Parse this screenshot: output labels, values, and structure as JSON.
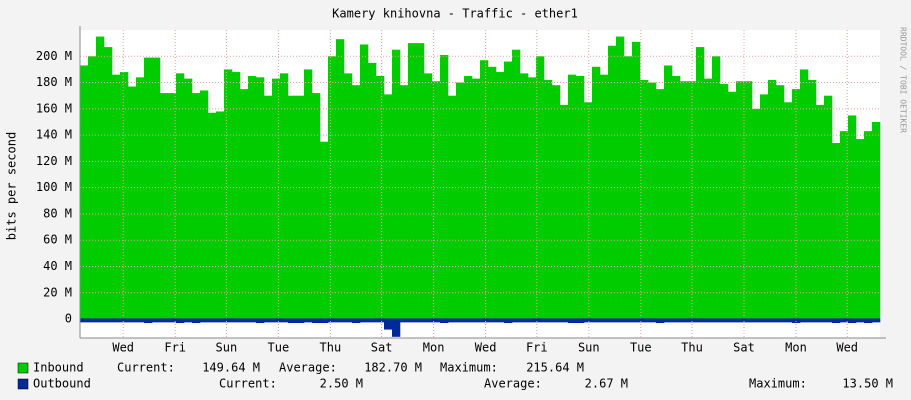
{
  "chart_data": {
    "type": "area",
    "title": "Kamery knihovna - Traffic - ether1",
    "y_label": "bits per second",
    "watermark": "RRDTOOL / TOBI OETIKER",
    "ylim": [
      -14.4,
      220
    ],
    "yticks": [
      0,
      {
        "value": 20,
        "label": "20 M"
      },
      {
        "value": 40,
        "label": "40 M"
      },
      {
        "value": 60,
        "label": "60 M"
      },
      {
        "value": 80,
        "label": "80 M"
      },
      {
        "value": 100,
        "label": "100 M"
      },
      {
        "value": 120,
        "label": "120 M"
      },
      {
        "value": 140,
        "label": "140 M"
      },
      {
        "value": 160,
        "label": "160 M"
      },
      {
        "value": 180,
        "label": "180 M"
      },
      {
        "value": 200,
        "label": "200 M"
      }
    ],
    "xlim": [
      0,
      100
    ],
    "xticks": [
      {
        "value": 5.4,
        "label": "Wed"
      },
      {
        "value": 11.9,
        "label": "Fri"
      },
      {
        "value": 18.3,
        "label": "Sun"
      },
      {
        "value": 24.8,
        "label": "Tue"
      },
      {
        "value": 31.3,
        "label": "Thu"
      },
      {
        "value": 37.7,
        "label": "Sat"
      },
      {
        "value": 44.2,
        "label": "Mon"
      },
      {
        "value": 50.7,
        "label": "Wed"
      },
      {
        "value": 57.1,
        "label": "Fri"
      },
      {
        "value": 63.6,
        "label": "Sun"
      },
      {
        "value": 70.1,
        "label": "Tue"
      },
      {
        "value": 76.5,
        "label": "Thu"
      },
      {
        "value": 83.0,
        "label": "Sat"
      },
      {
        "value": 89.5,
        "label": "Mon"
      },
      {
        "value": 95.9,
        "label": "Wed"
      }
    ],
    "grid": true,
    "series": [
      {
        "name": "Inbound",
        "color": "#00cc00",
        "values": [
          193,
          200,
          215,
          207,
          186,
          188,
          177,
          184,
          199,
          199,
          172,
          172,
          187,
          183,
          172,
          174,
          157,
          158,
          190,
          188,
          175,
          185,
          184,
          170,
          183,
          187,
          170,
          170,
          190,
          172,
          135,
          200,
          213,
          187,
          178,
          209,
          195,
          185,
          171,
          205,
          178,
          210,
          210,
          187,
          181,
          201,
          170,
          180,
          185,
          183,
          197,
          192,
          188,
          196,
          205,
          187,
          184,
          200,
          182,
          178,
          163,
          186,
          185,
          165,
          192,
          186,
          208,
          215,
          200,
          211,
          182,
          180,
          175,
          193,
          185,
          181,
          181,
          207,
          183,
          200,
          179,
          173,
          181,
          181,
          160,
          171,
          182,
          178,
          165,
          175,
          190,
          182,
          163,
          170,
          134,
          143,
          155,
          137,
          143,
          150
        ],
        "stats": [
          {
            "label": "Current:",
            "value": "149.64 M"
          },
          {
            "label": "Average:",
            "value": "182.70 M"
          },
          {
            "label": "Maximum:",
            "value": "215.64 M"
          }
        ]
      },
      {
        "name": "Outbound",
        "color": "#002a97",
        "values": [
          -2.5,
          -2.5,
          -2.5,
          -2.5,
          -2.5,
          -2.5,
          -2.5,
          -2.5,
          -3,
          -2.5,
          -2.5,
          -2.5,
          -3,
          -2.5,
          -3,
          -2.5,
          -2.5,
          -2.5,
          -2.5,
          -2.5,
          -2.5,
          -2.5,
          -3,
          -2.5,
          -2.5,
          -2.5,
          -3,
          -3,
          -2.5,
          -3,
          -3,
          -2.5,
          -2.5,
          -2.5,
          -3,
          -2.5,
          -2.5,
          -2.5,
          -8,
          -13.5,
          -2.5,
          -2.5,
          -2.5,
          -2.5,
          -2.5,
          -3,
          -2.5,
          -2.5,
          -2.5,
          -2.5,
          -2.5,
          -2.5,
          -2.5,
          -3,
          -2.5,
          -2.5,
          -2.5,
          -2.5,
          -2.5,
          -2.5,
          -2.5,
          -3,
          -3,
          -2.5,
          -2.5,
          -2.5,
          -2.5,
          -2.5,
          -2.5,
          -2.5,
          -2.5,
          -2.5,
          -3,
          -2.5,
          -2.5,
          -2.5,
          -2.5,
          -2.5,
          -2.5,
          -2.5,
          -2.5,
          -2.5,
          -2.5,
          -2.5,
          -2.5,
          -2.5,
          -2.5,
          -2.5,
          -2.5,
          -3,
          -2.5,
          -2.5,
          -2.5,
          -2.5,
          -3,
          -2.5,
          -3,
          -2.5,
          -3,
          -2.5
        ],
        "stats": [
          {
            "label": "Current:",
            "value": "2.50 M"
          },
          {
            "label": "Average:",
            "value": "2.67 M"
          },
          {
            "label": "Maximum:",
            "value": "13.50 M"
          }
        ]
      }
    ]
  }
}
